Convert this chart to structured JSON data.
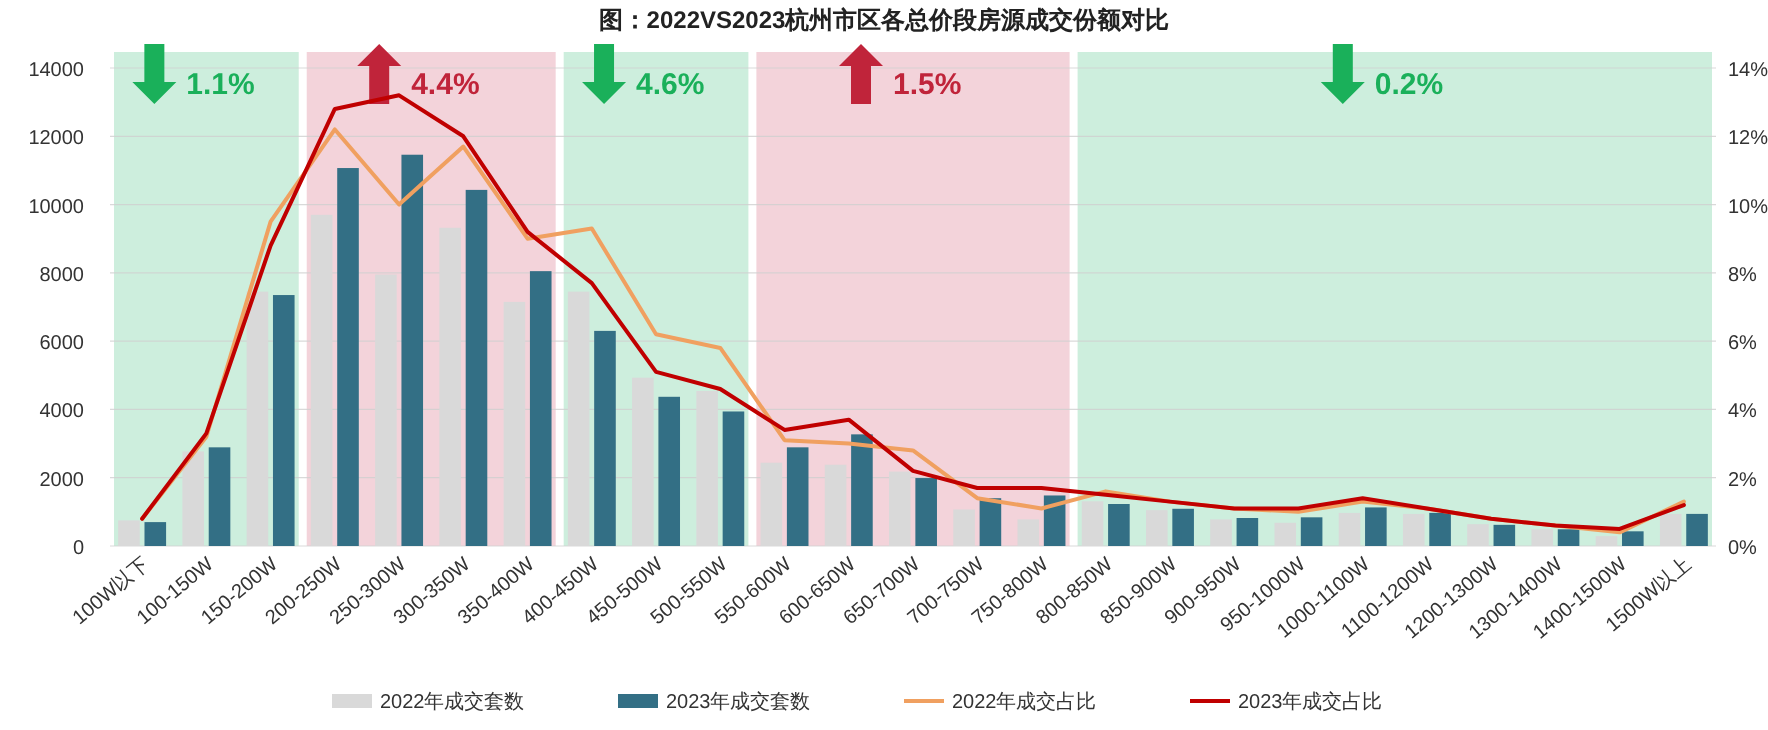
{
  "chart_data": {
    "type": "bar",
    "title": "图：2022VS2023杭州市区各总价段房源成交份额对比",
    "categories": [
      "100W以下",
      "100-150W",
      "150-200W",
      "200-250W",
      "250-300W",
      "300-350W",
      "350-400W",
      "400-450W",
      "450-500W",
      "500-550W",
      "550-600W",
      "600-650W",
      "650-700W",
      "700-750W",
      "750-800W",
      "800-850W",
      "850-900W",
      "900-950W",
      "950-1000W",
      "1000-1100W",
      "1100-1200W",
      "1200-1300W",
      "1300-1400W",
      "1400-1500W",
      "1500W以上"
    ],
    "series": [
      {
        "name": "2022年成交套数",
        "color": "#d9d9d9",
        "values": [
          750,
          2770,
          7450,
          9700,
          7950,
          9320,
          7150,
          7450,
          4930,
          4540,
          2440,
          2380,
          2180,
          1070,
          780,
          1310,
          1050,
          780,
          680,
          970,
          940,
          640,
          490,
          290,
          940
        ]
      },
      {
        "name": "2023年成交套数",
        "color": "#336f85",
        "values": [
          700,
          2890,
          7350,
          11070,
          11460,
          10430,
          8050,
          6300,
          4370,
          3940,
          2890,
          3270,
          1990,
          1400,
          1480,
          1230,
          1090,
          820,
          840,
          1130,
          970,
          620,
          490,
          430,
          940
        ]
      },
      {
        "name": "2022年成交占比",
        "type": "line",
        "axis": "y2",
        "color": "#f0a060",
        "values": [
          0.8,
          3.2,
          9.5,
          12.2,
          10.0,
          11.7,
          9.0,
          9.3,
          6.2,
          5.8,
          3.1,
          3.0,
          2.8,
          1.4,
          1.1,
          1.6,
          1.3,
          1.1,
          1.0,
          1.3,
          1.1,
          0.8,
          0.6,
          0.4,
          1.3
        ]
      },
      {
        "name": "2023年成交占比",
        "type": "line",
        "axis": "y2",
        "color": "#c00000",
        "values": [
          0.8,
          3.3,
          8.8,
          12.8,
          13.2,
          12.0,
          9.2,
          7.7,
          5.1,
          4.6,
          3.4,
          3.7,
          2.2,
          1.7,
          1.7,
          1.5,
          1.3,
          1.1,
          1.1,
          1.4,
          1.1,
          0.8,
          0.6,
          0.5,
          1.2
        ]
      }
    ],
    "ylim": [
      0,
      14000
    ],
    "yticks": [
      0,
      2000,
      4000,
      6000,
      8000,
      10000,
      12000,
      14000
    ],
    "y2lim": [
      0,
      14
    ],
    "y2ticks": [
      {
        "value": 0,
        "label": "0%"
      },
      {
        "value": 2,
        "label": "2%"
      },
      {
        "value": 4,
        "label": "4%"
      },
      {
        "value": 6,
        "label": "6%"
      },
      {
        "value": 8,
        "label": "8%"
      },
      {
        "value": 10,
        "label": "10%"
      },
      {
        "value": 12,
        "label": "12%"
      },
      {
        "value": 14,
        "label": "14%"
      }
    ],
    "bands": [
      {
        "axis": "x",
        "from": "100W以下",
        "to": "150-200W",
        "label": "1.1%",
        "color": "#cdeedd"
      },
      {
        "axis": "x",
        "from": "200-250W",
        "to": "350-400W",
        "label": "4.4%",
        "color": "#f3d3da"
      },
      {
        "axis": "x",
        "from": "400-450W",
        "to": "500-550W",
        "label": "4.6%",
        "color": "#cdeedd"
      },
      {
        "axis": "x",
        "from": "550-600W",
        "to": "750-800W",
        "label": "1.5%",
        "color": "#f3d3da"
      },
      {
        "axis": "x",
        "from": "800-850W",
        "to": "1500W以上",
        "label": "0.2%",
        "color": "#cdeedd"
      }
    ],
    "grid": "y",
    "legend": "bottom"
  }
}
